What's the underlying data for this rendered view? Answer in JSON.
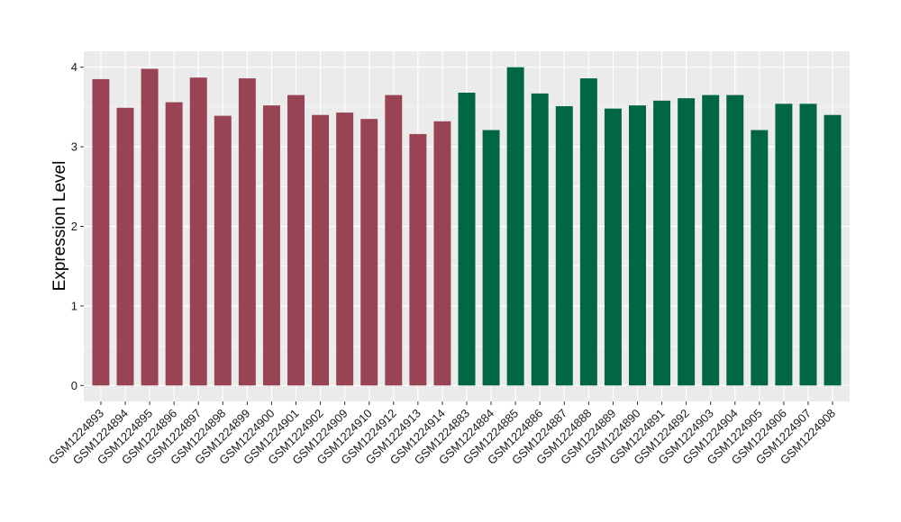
{
  "chart_data": {
    "type": "bar",
    "title": "",
    "xlabel": "",
    "ylabel": "Expression Level",
    "ylim": [
      -0.2,
      4.2
    ],
    "yticks": [
      0,
      1,
      2,
      3,
      4
    ],
    "grid": true,
    "legend": "none",
    "colors": {
      "group_1": "#994455",
      "group_2": "#006644",
      "panel_bg": "#ebebeb",
      "grid": "#ffffff"
    },
    "categories": [
      "GSM1224893",
      "GSM1224894",
      "GSM1224895",
      "GSM1224896",
      "GSM1224897",
      "GSM1224898",
      "GSM1224899",
      "GSM1224900",
      "GSM1224901",
      "GSM1224902",
      "GSM1224909",
      "GSM1224910",
      "GSM1224912",
      "GSM1224913",
      "GSM1224914",
      "GSM1224883",
      "GSM1224884",
      "GSM1224885",
      "GSM1224886",
      "GSM1224887",
      "GSM1224888",
      "GSM1224889",
      "GSM1224890",
      "GSM1224891",
      "GSM1224892",
      "GSM1224903",
      "GSM1224904",
      "GSM1224905",
      "GSM1224906",
      "GSM1224907",
      "GSM1224908"
    ],
    "values": [
      3.85,
      3.49,
      3.98,
      3.56,
      3.87,
      3.39,
      3.86,
      3.52,
      3.65,
      3.4,
      3.43,
      3.35,
      3.65,
      3.16,
      3.32,
      3.68,
      3.21,
      4.0,
      3.67,
      3.51,
      3.86,
      3.48,
      3.52,
      3.58,
      3.61,
      3.65,
      3.65,
      3.21,
      3.54,
      3.54,
      3.4
    ],
    "groups": [
      1,
      1,
      1,
      1,
      1,
      1,
      1,
      1,
      1,
      1,
      1,
      1,
      1,
      1,
      1,
      2,
      2,
      2,
      2,
      2,
      2,
      2,
      2,
      2,
      2,
      2,
      2,
      2,
      2,
      2,
      2
    ]
  }
}
